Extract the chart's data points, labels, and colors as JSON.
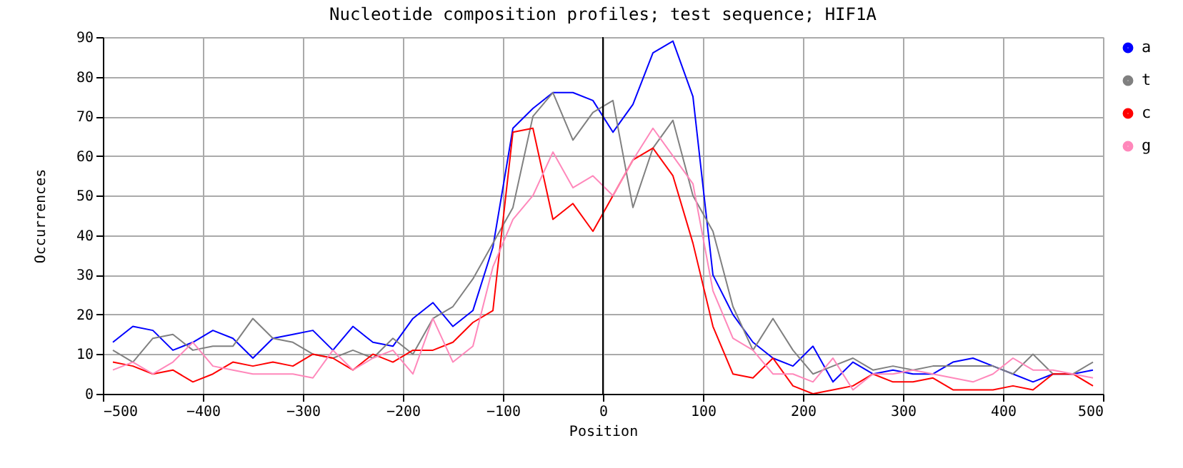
{
  "chart_data": {
    "type": "line",
    "title": "Nucleotide composition profiles; test sequence; HIF1A",
    "xlabel": "Position",
    "ylabel": "Occurrences",
    "x": [
      -490,
      -470,
      -450,
      -430,
      -410,
      -390,
      -370,
      -350,
      -330,
      -310,
      -290,
      -270,
      -250,
      -230,
      -210,
      -190,
      -170,
      -150,
      -130,
      -110,
      -90,
      -70,
      -50,
      -30,
      -10,
      10,
      30,
      50,
      70,
      90,
      110,
      130,
      150,
      170,
      190,
      210,
      230,
      250,
      270,
      290,
      310,
      330,
      350,
      370,
      390,
      410,
      430,
      450,
      470,
      490
    ],
    "series": [
      {
        "name": "a",
        "color": "#0000ff",
        "values": [
          13,
          17,
          16,
          11,
          13,
          16,
          14,
          9,
          14,
          15,
          16,
          11,
          17,
          13,
          12,
          19,
          23,
          17,
          21,
          37,
          67,
          72,
          76,
          76,
          74,
          66,
          73,
          86,
          89,
          75,
          30,
          20,
          13,
          9,
          7,
          12,
          3,
          8,
          5,
          6,
          5,
          5,
          8,
          9,
          7,
          5,
          3,
          5,
          5,
          6
        ]
      },
      {
        "name": "t",
        "color": "#808080",
        "values": [
          11,
          8,
          14,
          15,
          11,
          12,
          12,
          19,
          14,
          13,
          10,
          9,
          11,
          9,
          14,
          10,
          19,
          22,
          29,
          38,
          47,
          70,
          76,
          64,
          71,
          74,
          47,
          62,
          69,
          50,
          41,
          22,
          11,
          19,
          11,
          5,
          7,
          9,
          6,
          7,
          6,
          7,
          7,
          7,
          7,
          5,
          10,
          5,
          5,
          8
        ]
      },
      {
        "name": "c",
        "color": "#ff0000",
        "values": [
          8,
          7,
          5,
          6,
          3,
          5,
          8,
          7,
          8,
          7,
          10,
          9,
          6,
          10,
          8,
          11,
          11,
          13,
          18,
          21,
          66,
          67,
          44,
          48,
          41,
          50,
          59,
          62,
          55,
          38,
          17,
          5,
          4,
          9,
          2,
          0,
          1,
          2,
          5,
          3,
          3,
          4,
          1,
          1,
          1,
          2,
          1,
          5,
          5,
          2
        ]
      },
      {
        "name": "g",
        "color": "#ff88bb",
        "values": [
          6,
          8,
          5,
          8,
          13,
          7,
          6,
          5,
          5,
          5,
          4,
          11,
          6,
          9,
          11,
          5,
          19,
          8,
          12,
          32,
          44,
          50,
          61,
          52,
          55,
          50,
          59,
          67,
          60,
          53,
          26,
          14,
          11,
          5,
          5,
          3,
          9,
          1,
          5,
          5,
          6,
          5,
          4,
          3,
          5,
          9,
          6,
          6,
          5,
          4
        ]
      }
    ],
    "xlim": [
      -500,
      500
    ],
    "xticks": [
      -500,
      -400,
      -300,
      -200,
      -100,
      0,
      100,
      200,
      300,
      400,
      500
    ],
    "ylim": [
      0,
      90
    ],
    "yticks": [
      0,
      10,
      20,
      30,
      40,
      50,
      60,
      70,
      80,
      90
    ],
    "ref_lines": [
      {
        "axis": "x",
        "value": 0,
        "color": "#000000"
      }
    ],
    "grid": true,
    "legend": "top right",
    "marker": "none",
    "line_style": "solid"
  }
}
